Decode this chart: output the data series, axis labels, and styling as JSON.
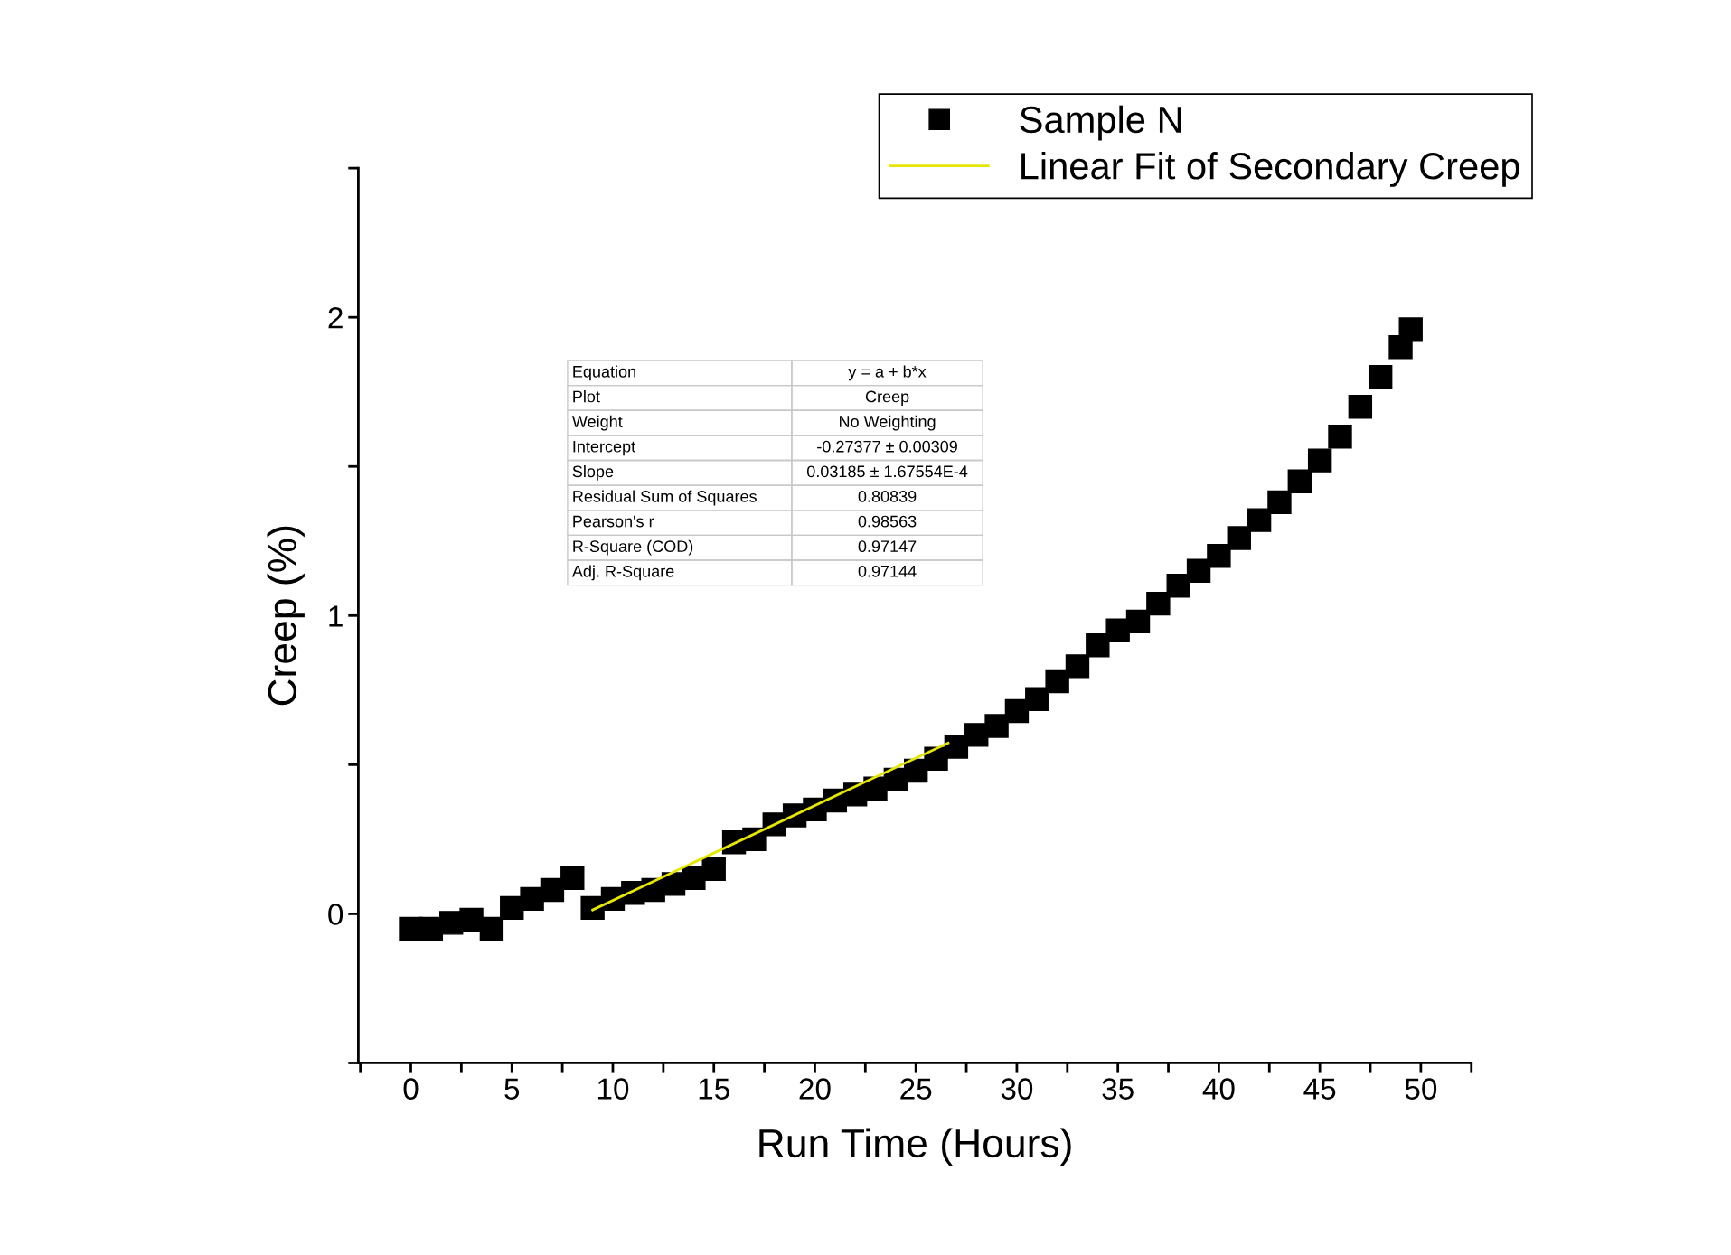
{
  "chart_data": {
    "type": "scatter",
    "xlabel": "Run Time (Hours)",
    "ylabel": "Creep (%)",
    "xlim": [
      -2.6,
      52.5
    ],
    "ylim": [
      -0.5,
      2.5
    ],
    "xticks": [
      {
        "value": -2.5,
        "label": null
      },
      0,
      {
        "value": 2.5,
        "label": null
      },
      5,
      {
        "value": 7.5,
        "label": null
      },
      10,
      {
        "value": 12.5,
        "label": null
      },
      15,
      {
        "value": 17.5,
        "label": null
      },
      20,
      {
        "value": 22.5,
        "label": null
      },
      25,
      {
        "value": 27.5,
        "label": null
      },
      30,
      {
        "value": 32.5,
        "label": null
      },
      35,
      {
        "value": 37.5,
        "label": null
      },
      40,
      {
        "value": 42.5,
        "label": null
      },
      45,
      {
        "value": 47.5,
        "label": null
      },
      50,
      {
        "value": 52.5,
        "label": null
      }
    ],
    "yticks": [
      {
        "value": -0.5,
        "label": null
      },
      0,
      {
        "value": 0.5,
        "label": null
      },
      1,
      {
        "value": 1.5,
        "label": null
      },
      2,
      {
        "value": 2.5,
        "label": null
      }
    ],
    "grid": false,
    "legend": "top right",
    "series": [
      {
        "name": "Sample N",
        "color": "#000000",
        "marker": "square",
        "x": [
          0,
          1,
          2,
          3,
          4,
          5,
          6,
          7,
          8,
          9,
          10,
          11,
          12,
          13,
          14,
          15,
          16,
          17,
          18,
          19,
          20,
          21,
          22,
          23,
          24,
          25,
          26,
          27,
          28,
          29,
          30,
          31,
          32,
          33,
          34,
          35,
          36,
          37,
          38,
          39,
          40,
          41,
          42,
          43,
          44,
          45,
          46,
          47,
          48,
          49,
          49.5
        ],
        "values": [
          -0.05,
          -0.05,
          -0.03,
          -0.02,
          -0.05,
          0.02,
          0.05,
          0.08,
          0.12,
          0.02,
          0.05,
          0.07,
          0.08,
          0.1,
          0.12,
          0.15,
          0.24,
          0.25,
          0.3,
          0.33,
          0.35,
          0.38,
          0.4,
          0.42,
          0.45,
          0.48,
          0.52,
          0.56,
          0.6,
          0.63,
          0.68,
          0.72,
          0.78,
          0.83,
          0.9,
          0.95,
          0.98,
          1.04,
          1.1,
          1.15,
          1.2,
          1.26,
          1.32,
          1.38,
          1.45,
          1.52,
          1.6,
          1.7,
          1.8,
          1.9,
          1.96
        ]
      },
      {
        "name": "Linear Fit of Secondary Creep",
        "color": "#e6e600",
        "type": "line",
        "marker": "none",
        "x": [
          9,
          26.6
        ],
        "values": [
          0.013,
          0.573
        ]
      }
    ],
    "annotations": [
      "Equation",
      "y = a + b*x",
      "Plot",
      "Creep",
      "Weight",
      "No Weighting",
      "Intercept",
      "-0.27377 ± 0.00309",
      "Slope",
      "0.03185 ± 1.67554E-4",
      "Residual Sum of Squares",
      "0.80839",
      "Pearson's r",
      "0.98563",
      "R-Square (COD)",
      "0.97147",
      "Adj. R-Square",
      "0.97144"
    ]
  }
}
